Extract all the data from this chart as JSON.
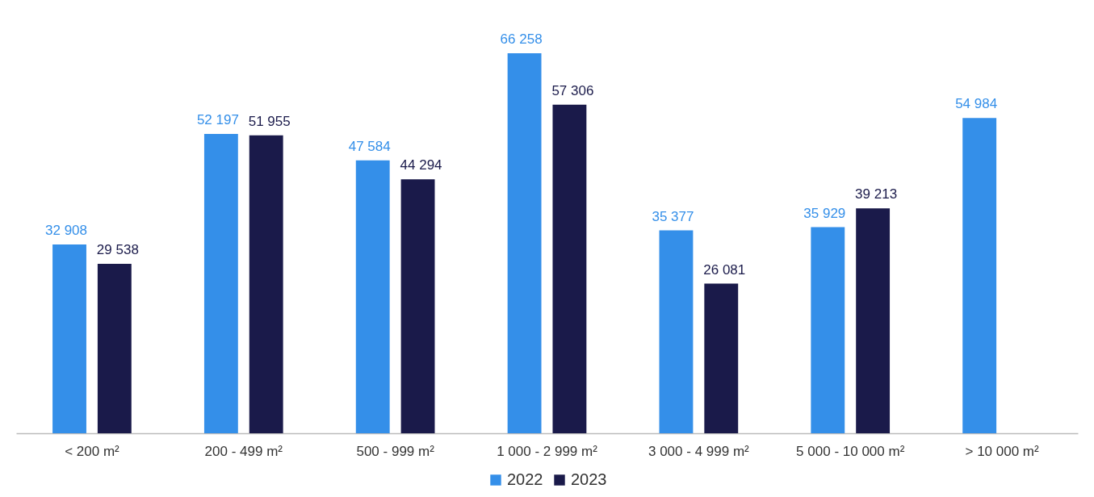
{
  "chart_data": {
    "type": "bar",
    "categories": [
      "< 200 m²",
      "200 - 499 m²",
      "500 - 999 m²",
      "1 000 - 2 999 m²",
      "3 000 - 4 999 m²",
      "5 000 - 10 000 m²",
      "> 10 000 m²"
    ],
    "series": [
      {
        "name": "2022",
        "color": "#348fe9",
        "values": [
          32908,
          52197,
          47584,
          66258,
          35377,
          35929,
          54984
        ]
      },
      {
        "name": "2023",
        "color": "#1a1a4a",
        "values": [
          29538,
          51955,
          44294,
          57306,
          26081,
          39213,
          null
        ]
      }
    ],
    "data_labels": true,
    "legend": "bottom",
    "grid": false
  }
}
